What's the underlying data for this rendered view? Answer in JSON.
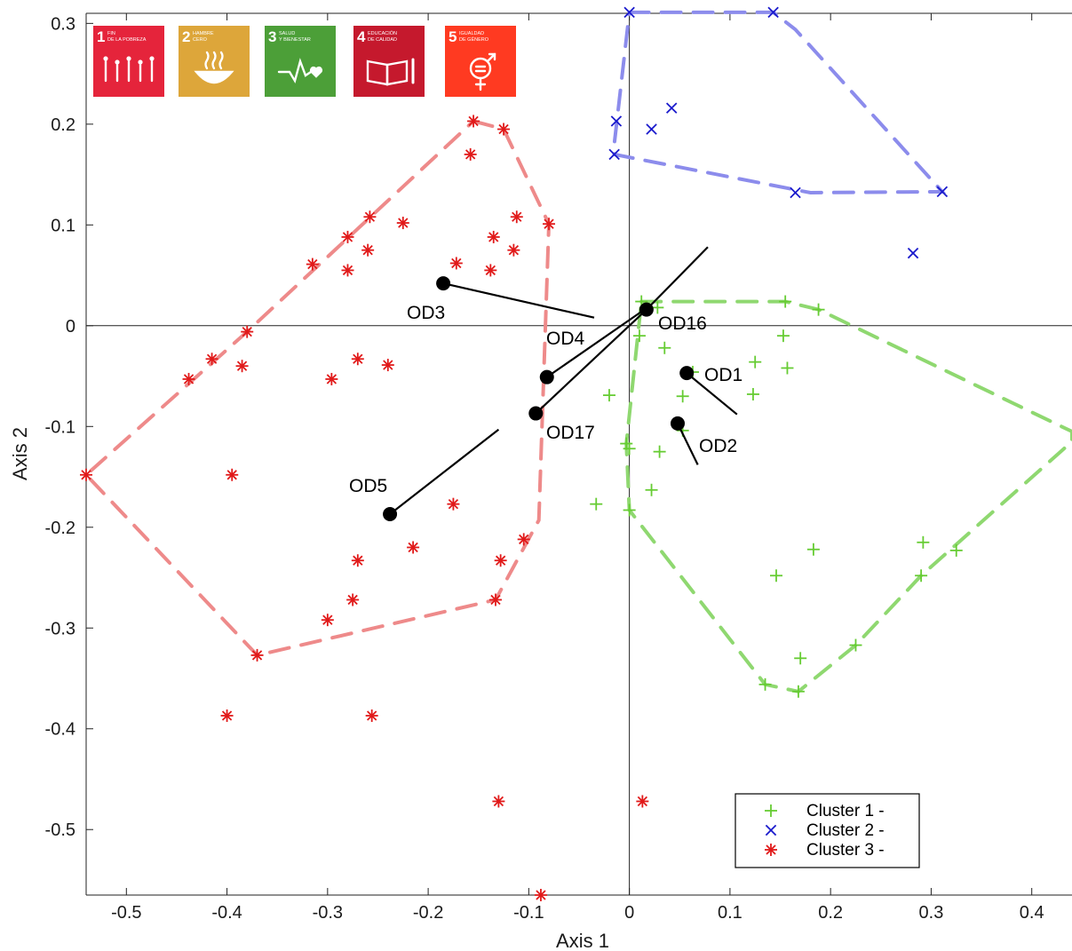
{
  "chart_data": {
    "type": "scatter",
    "xlabel": "Axis 1",
    "ylabel": "Axis 2",
    "xlim": [
      -0.54,
      0.44
    ],
    "ylim": [
      -0.565,
      0.31
    ],
    "xticks": [
      -0.5,
      -0.4,
      -0.3,
      -0.2,
      -0.1,
      0,
      0.1,
      0.2,
      0.3,
      0.4
    ],
    "xtick_labels": [
      "-0.5",
      "-0.4",
      "-0.3",
      "-0.2",
      "-0.1",
      "0",
      "0.1",
      "0.2",
      "0.3",
      "0.4"
    ],
    "yticks": [
      0.3,
      0.2,
      0.1,
      0,
      -0.1,
      -0.2,
      -0.3,
      -0.4,
      -0.5
    ],
    "ytick_labels": [
      "0.3",
      "0.2",
      "0.1",
      "0",
      "-0.1",
      "-0.2",
      "-0.3",
      "-0.4",
      "-0.5"
    ],
    "grid": false,
    "legend_position": "bottom-right",
    "series": [
      {
        "name": "Cluster 1 -",
        "marker": "plus",
        "color": "#66cc33",
        "points": [
          [
            0.012,
            0.024
          ],
          [
            0.028,
            0.018
          ],
          [
            0.155,
            0.024
          ],
          [
            0.188,
            0.016
          ],
          [
            0.01,
            -0.01
          ],
          [
            0.153,
            -0.01
          ],
          [
            0.035,
            -0.022
          ],
          [
            0.125,
            -0.036
          ],
          [
            0.157,
            -0.042
          ],
          [
            0.063,
            -0.046
          ],
          [
            -0.02,
            -0.069
          ],
          [
            0.053,
            -0.07
          ],
          [
            0.123,
            -0.068
          ],
          [
            0.053,
            -0.104
          ],
          [
            -0.003,
            -0.117
          ],
          [
            0.0,
            -0.122
          ],
          [
            0.03,
            -0.125
          ],
          [
            0.022,
            -0.163
          ],
          [
            -0.033,
            -0.177
          ],
          [
            0.0,
            -0.183
          ],
          [
            0.183,
            -0.222
          ],
          [
            0.292,
            -0.215
          ],
          [
            0.325,
            -0.223
          ],
          [
            0.146,
            -0.248
          ],
          [
            0.29,
            -0.248
          ],
          [
            0.225,
            -0.317
          ],
          [
            0.17,
            -0.33
          ],
          [
            0.135,
            -0.356
          ],
          [
            0.168,
            -0.363
          ]
        ],
        "hull": [
          [
            0.012,
            0.024
          ],
          [
            0.155,
            0.024
          ],
          [
            0.188,
            0.016
          ],
          [
            0.44,
            -0.105
          ],
          [
            0.44,
            -0.115
          ],
          [
            0.29,
            -0.248
          ],
          [
            0.225,
            -0.317
          ],
          [
            0.168,
            -0.363
          ],
          [
            0.135,
            -0.356
          ],
          [
            0.0,
            -0.183
          ],
          [
            -0.003,
            -0.117
          ],
          [
            0.012,
            0.024
          ]
        ]
      },
      {
        "name": "Cluster 2 -",
        "marker": "x",
        "color": "#1a1acc",
        "points": [
          [
            0.0,
            0.311
          ],
          [
            0.143,
            0.311
          ],
          [
            -0.013,
            0.203
          ],
          [
            0.042,
            0.216
          ],
          [
            0.022,
            0.195
          ],
          [
            -0.015,
            0.17
          ],
          [
            0.165,
            0.132
          ],
          [
            0.311,
            0.133
          ],
          [
            0.282,
            0.072
          ]
        ],
        "hull": [
          [
            0.0,
            0.311
          ],
          [
            0.143,
            0.311
          ],
          [
            0.165,
            0.294
          ],
          [
            0.311,
            0.133
          ],
          [
            0.18,
            0.132
          ],
          [
            -0.015,
            0.17
          ],
          [
            -0.015,
            0.18
          ],
          [
            0.0,
            0.311
          ]
        ]
      },
      {
        "name": "Cluster 3 -",
        "marker": "asterisk",
        "color": "#e11a1a",
        "points": [
          [
            -0.155,
            0.203
          ],
          [
            -0.125,
            0.195
          ],
          [
            -0.158,
            0.17
          ],
          [
            -0.258,
            0.108
          ],
          [
            -0.112,
            0.108
          ],
          [
            -0.225,
            0.102
          ],
          [
            -0.08,
            0.101
          ],
          [
            -0.28,
            0.088
          ],
          [
            -0.135,
            0.088
          ],
          [
            -0.26,
            0.075
          ],
          [
            -0.115,
            0.075
          ],
          [
            -0.315,
            0.061
          ],
          [
            -0.172,
            0.062
          ],
          [
            -0.28,
            0.055
          ],
          [
            -0.138,
            0.055
          ],
          [
            -0.38,
            -0.006
          ],
          [
            -0.415,
            -0.033
          ],
          [
            -0.385,
            -0.04
          ],
          [
            -0.27,
            -0.033
          ],
          [
            -0.24,
            -0.039
          ],
          [
            -0.438,
            -0.053
          ],
          [
            -0.296,
            -0.053
          ],
          [
            -0.54,
            -0.148
          ],
          [
            -0.395,
            -0.148
          ],
          [
            -0.175,
            -0.177
          ],
          [
            -0.215,
            -0.22
          ],
          [
            -0.105,
            -0.212
          ],
          [
            -0.27,
            -0.233
          ],
          [
            -0.128,
            -0.233
          ],
          [
            -0.275,
            -0.272
          ],
          [
            -0.133,
            -0.272
          ],
          [
            -0.3,
            -0.292
          ],
          [
            -0.37,
            -0.327
          ],
          [
            -0.4,
            -0.387
          ],
          [
            -0.256,
            -0.387
          ],
          [
            -0.13,
            -0.472
          ],
          [
            0.013,
            -0.472
          ],
          [
            -0.088,
            -0.565
          ]
        ],
        "hull": [
          [
            -0.155,
            0.203
          ],
          [
            -0.125,
            0.195
          ],
          [
            -0.08,
            0.101
          ],
          [
            -0.09,
            -0.193
          ],
          [
            -0.133,
            -0.272
          ],
          [
            -0.37,
            -0.327
          ],
          [
            -0.54,
            -0.148
          ],
          [
            -0.38,
            -0.006
          ],
          [
            -0.155,
            0.203
          ]
        ]
      }
    ],
    "annotations": [
      {
        "label": "OD3",
        "point": [
          -0.185,
          0.042
        ],
        "line_to": [
          -0.035,
          0.008
        ]
      },
      {
        "label": "OD4",
        "point": [
          -0.082,
          -0.051
        ],
        "line_to": [
          0.015,
          0.016
        ]
      },
      {
        "label": "OD16",
        "point": [
          0.017,
          0.016
        ],
        "line_to": [
          0.078,
          0.078
        ]
      },
      {
        "label": "OD17",
        "point": [
          -0.093,
          -0.087
        ],
        "line_to": [
          0.017,
          0.016
        ]
      },
      {
        "label": "OD1",
        "point": [
          0.057,
          -0.047
        ],
        "line_to": [
          0.107,
          -0.088
        ]
      },
      {
        "label": "OD2",
        "point": [
          0.048,
          -0.097
        ],
        "line_to": [
          0.068,
          -0.138
        ]
      },
      {
        "label": "OD5",
        "point": [
          -0.238,
          -0.187
        ],
        "line_to": [
          -0.13,
          -0.103
        ]
      }
    ]
  },
  "sdg_logos": [
    {
      "number": "1",
      "title_line1": "FIN",
      "title_line2": "DE LA POBREZA",
      "color": "#e5243b",
      "icon": "people-icon"
    },
    {
      "number": "2",
      "title_line1": "HAMBRE",
      "title_line2": "CERO",
      "color": "#dda63a",
      "icon": "bowl-icon"
    },
    {
      "number": "3",
      "title_line1": "SALUD",
      "title_line2": "Y BIENESTAR",
      "color": "#4c9f38",
      "icon": "heartbeat-icon"
    },
    {
      "number": "4",
      "title_line1": "EDUCACIÓN",
      "title_line2": "DE CALIDAD",
      "color": "#c5192d",
      "icon": "book-icon"
    },
    {
      "number": "5",
      "title_line1": "IGUALDAD",
      "title_line2": "DE GÉNERO",
      "color": "#ff3a21",
      "icon": "gender-icon"
    }
  ]
}
